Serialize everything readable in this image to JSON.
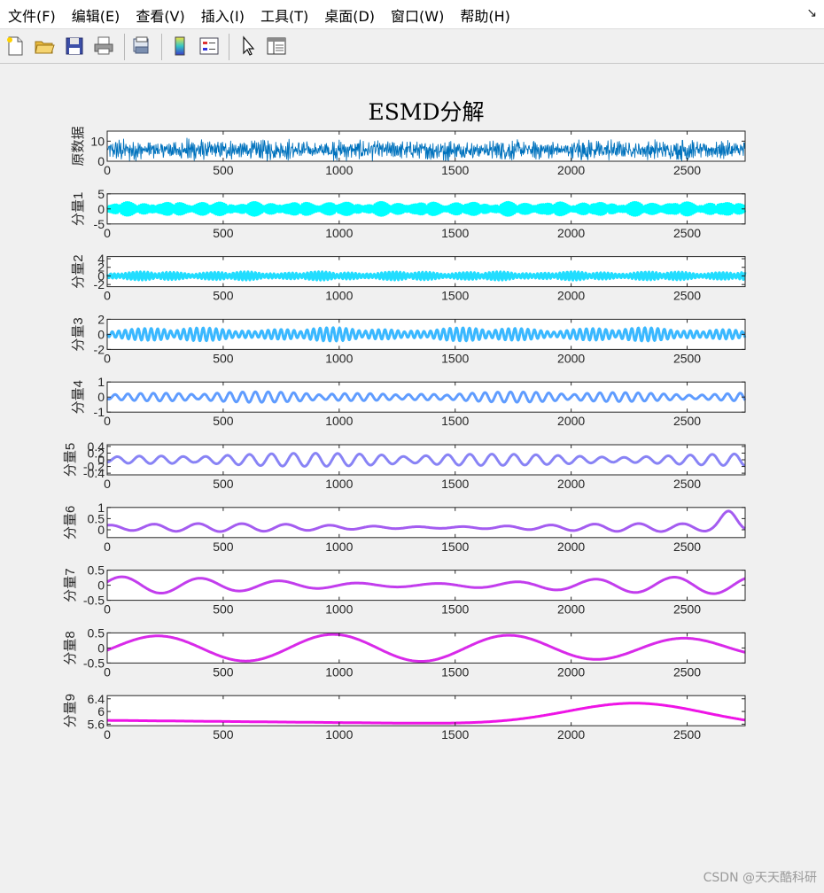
{
  "menu": {
    "items": [
      "文件(F)",
      "编辑(E)",
      "查看(V)",
      "插入(I)",
      "工具(T)",
      "桌面(D)",
      "窗口(W)",
      "帮助(H)"
    ],
    "corner_arrow": "↘"
  },
  "toolbar": {
    "icons": [
      "new-file-icon",
      "open-folder-icon",
      "save-icon",
      "print-icon",
      "print-preview-icon",
      "colorbar-icon",
      "legend-icon",
      "pointer-icon",
      "property-editor-icon"
    ]
  },
  "watermark": "CSDN @天天酷科研",
  "chart_data": {
    "type": "line",
    "title": "ESMD分解",
    "x_range": [
      0,
      2750
    ],
    "x_ticks": [
      0,
      500,
      1000,
      1500,
      2000,
      2500
    ],
    "panels": [
      {
        "ylabel": "原数据",
        "yticks": [
          0,
          10
        ],
        "ylim": [
          0,
          15
        ],
        "color": "#0072bd",
        "signal": "noisy",
        "baseline": 5.6,
        "amp": 4.5
      },
      {
        "ylabel": "分量1",
        "yticks": [
          -5,
          0,
          5
        ],
        "ylim": [
          -5,
          5
        ],
        "color": "#00ffff",
        "signal": "bursty",
        "amp": 2.3,
        "period": 8
      },
      {
        "ylabel": "分量2",
        "yticks": [
          -2,
          0,
          2,
          4
        ],
        "ylim": [
          -2.5,
          4.5
        ],
        "color": "#22ddff",
        "signal": "bursty",
        "amp": 1.0,
        "period": 16
      },
      {
        "ylabel": "分量3",
        "yticks": [
          -2,
          0,
          2
        ],
        "ylim": [
          -2,
          2
        ],
        "color": "#3ab8ff",
        "signal": "bursty",
        "amp": 0.9,
        "period": 28
      },
      {
        "ylabel": "分量4",
        "yticks": [
          -1,
          0,
          1
        ],
        "ylim": [
          -1,
          1
        ],
        "color": "#5f9cff",
        "signal": "bursty",
        "amp": 0.35,
        "period": 55
      },
      {
        "ylabel": "分量5",
        "yticks": [
          -0.4,
          -0.2,
          0,
          0.2,
          0.4
        ],
        "ylim": [
          -0.45,
          0.45
        ],
        "color": "#8883f5",
        "signal": "bursty",
        "amp": 0.2,
        "period": 95
      },
      {
        "ylabel": "分量6",
        "yticks": [
          0,
          0.5,
          1
        ],
        "ylim": [
          -0.35,
          1
        ],
        "color": "#a45cf0",
        "signal": "smooth6"
      },
      {
        "ylabel": "分量7",
        "yticks": [
          -0.5,
          0,
          0.5
        ],
        "ylim": [
          -0.5,
          0.5
        ],
        "color": "#c23ded",
        "signal": "smooth7"
      },
      {
        "ylabel": "分量8",
        "yticks": [
          -0.5,
          0,
          0.5
        ],
        "ylim": [
          -0.5,
          0.5
        ],
        "color": "#d82ae9",
        "signal": "smooth8"
      },
      {
        "ylabel": "分量9",
        "yticks": [
          5.6,
          6,
          6.4
        ],
        "ylim": [
          5.55,
          6.5
        ],
        "color": "#ee14e6",
        "signal": "trend9"
      }
    ]
  }
}
